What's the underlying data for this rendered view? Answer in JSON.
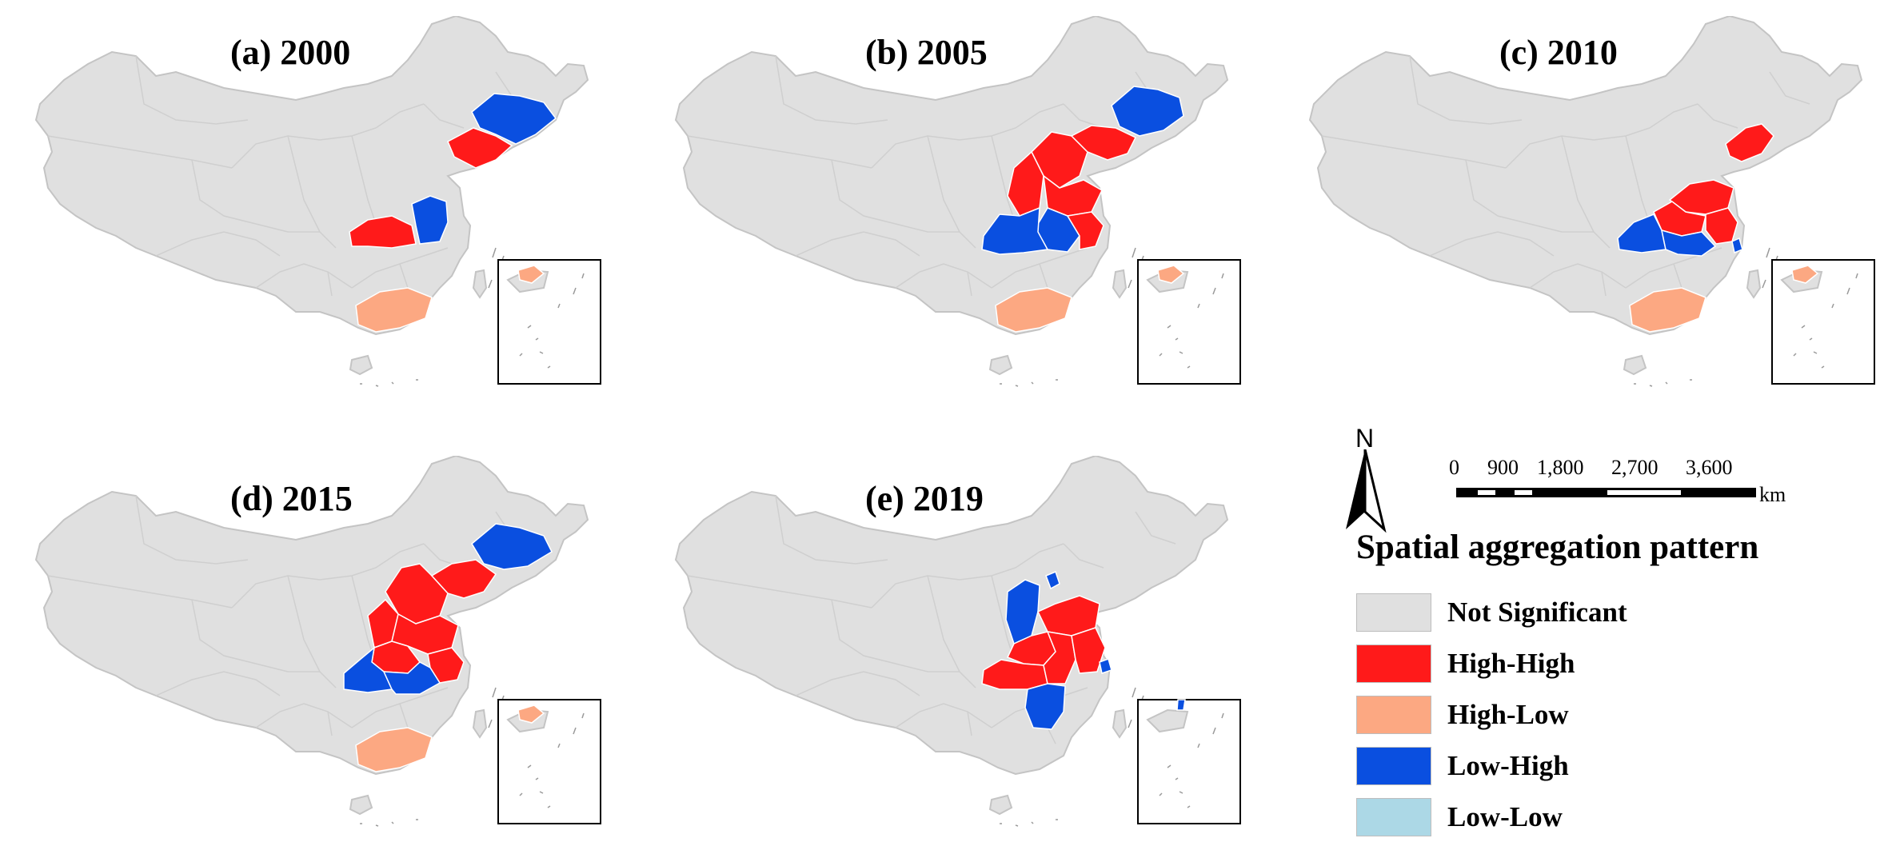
{
  "panels": [
    {
      "title": "(a) 2000",
      "high_high": [
        "Liaoning",
        "Shaanxi"
      ],
      "high_low": [
        "Guangdong"
      ],
      "low_high": [
        "Jilin",
        "Henan"
      ],
      "low_low": []
    },
    {
      "title": "(b) 2005",
      "high_high": [
        "Beijing-Tianjin-Hebei",
        "Shanxi",
        "Shandong",
        "Liaoning"
      ],
      "high_low": [
        "Guangdong"
      ],
      "low_high": [
        "Jilin",
        "Henan",
        "Shaanxi"
      ],
      "low_low": []
    },
    {
      "title": "(c) 2010",
      "high_high": [
        "Liaoning",
        "Shandong",
        "Henan",
        "Jiangsu"
      ],
      "high_low": [
        "Guangdong"
      ],
      "low_high": [
        "Shaanxi",
        "Anhui",
        "Hubei"
      ],
      "low_low": []
    },
    {
      "title": "(d) 2015",
      "high_high": [
        "Inner Mongolia (central)",
        "Shanxi",
        "Hebei",
        "Shandong",
        "Liaoning",
        "Henan"
      ],
      "high_low": [
        "Guangdong"
      ],
      "low_high": [
        "Jilin",
        "Shaanxi",
        "Anhui"
      ],
      "low_low": []
    },
    {
      "title": "(e) 2019",
      "high_high": [
        "Shandong",
        "Henan",
        "Hubei",
        "Anhui",
        "Jiangsu"
      ],
      "high_low": [],
      "low_high": [
        "Shanxi",
        "Jiangxi",
        "Taiwan"
      ],
      "low_low": []
    }
  ],
  "north_arrow": {
    "label": "N"
  },
  "scale_bar": {
    "ticks": [
      "0",
      "900",
      "1,800",
      "2,700",
      "3,600"
    ],
    "unit": "km"
  },
  "legend": {
    "title": "Spatial aggregation pattern",
    "items": [
      {
        "key": "not_significant",
        "label": "Not Significant",
        "color": "#e0e0e0"
      },
      {
        "key": "high_high",
        "label": "High-High",
        "color": "#ff1a1a"
      },
      {
        "key": "high_low",
        "label": "High-Low",
        "color": "#fca882"
      },
      {
        "key": "low_high",
        "label": "Low-High",
        "color": "#0a4fe0"
      },
      {
        "key": "low_low",
        "label": "Low-Low",
        "color": "#acd8e6"
      }
    ]
  }
}
